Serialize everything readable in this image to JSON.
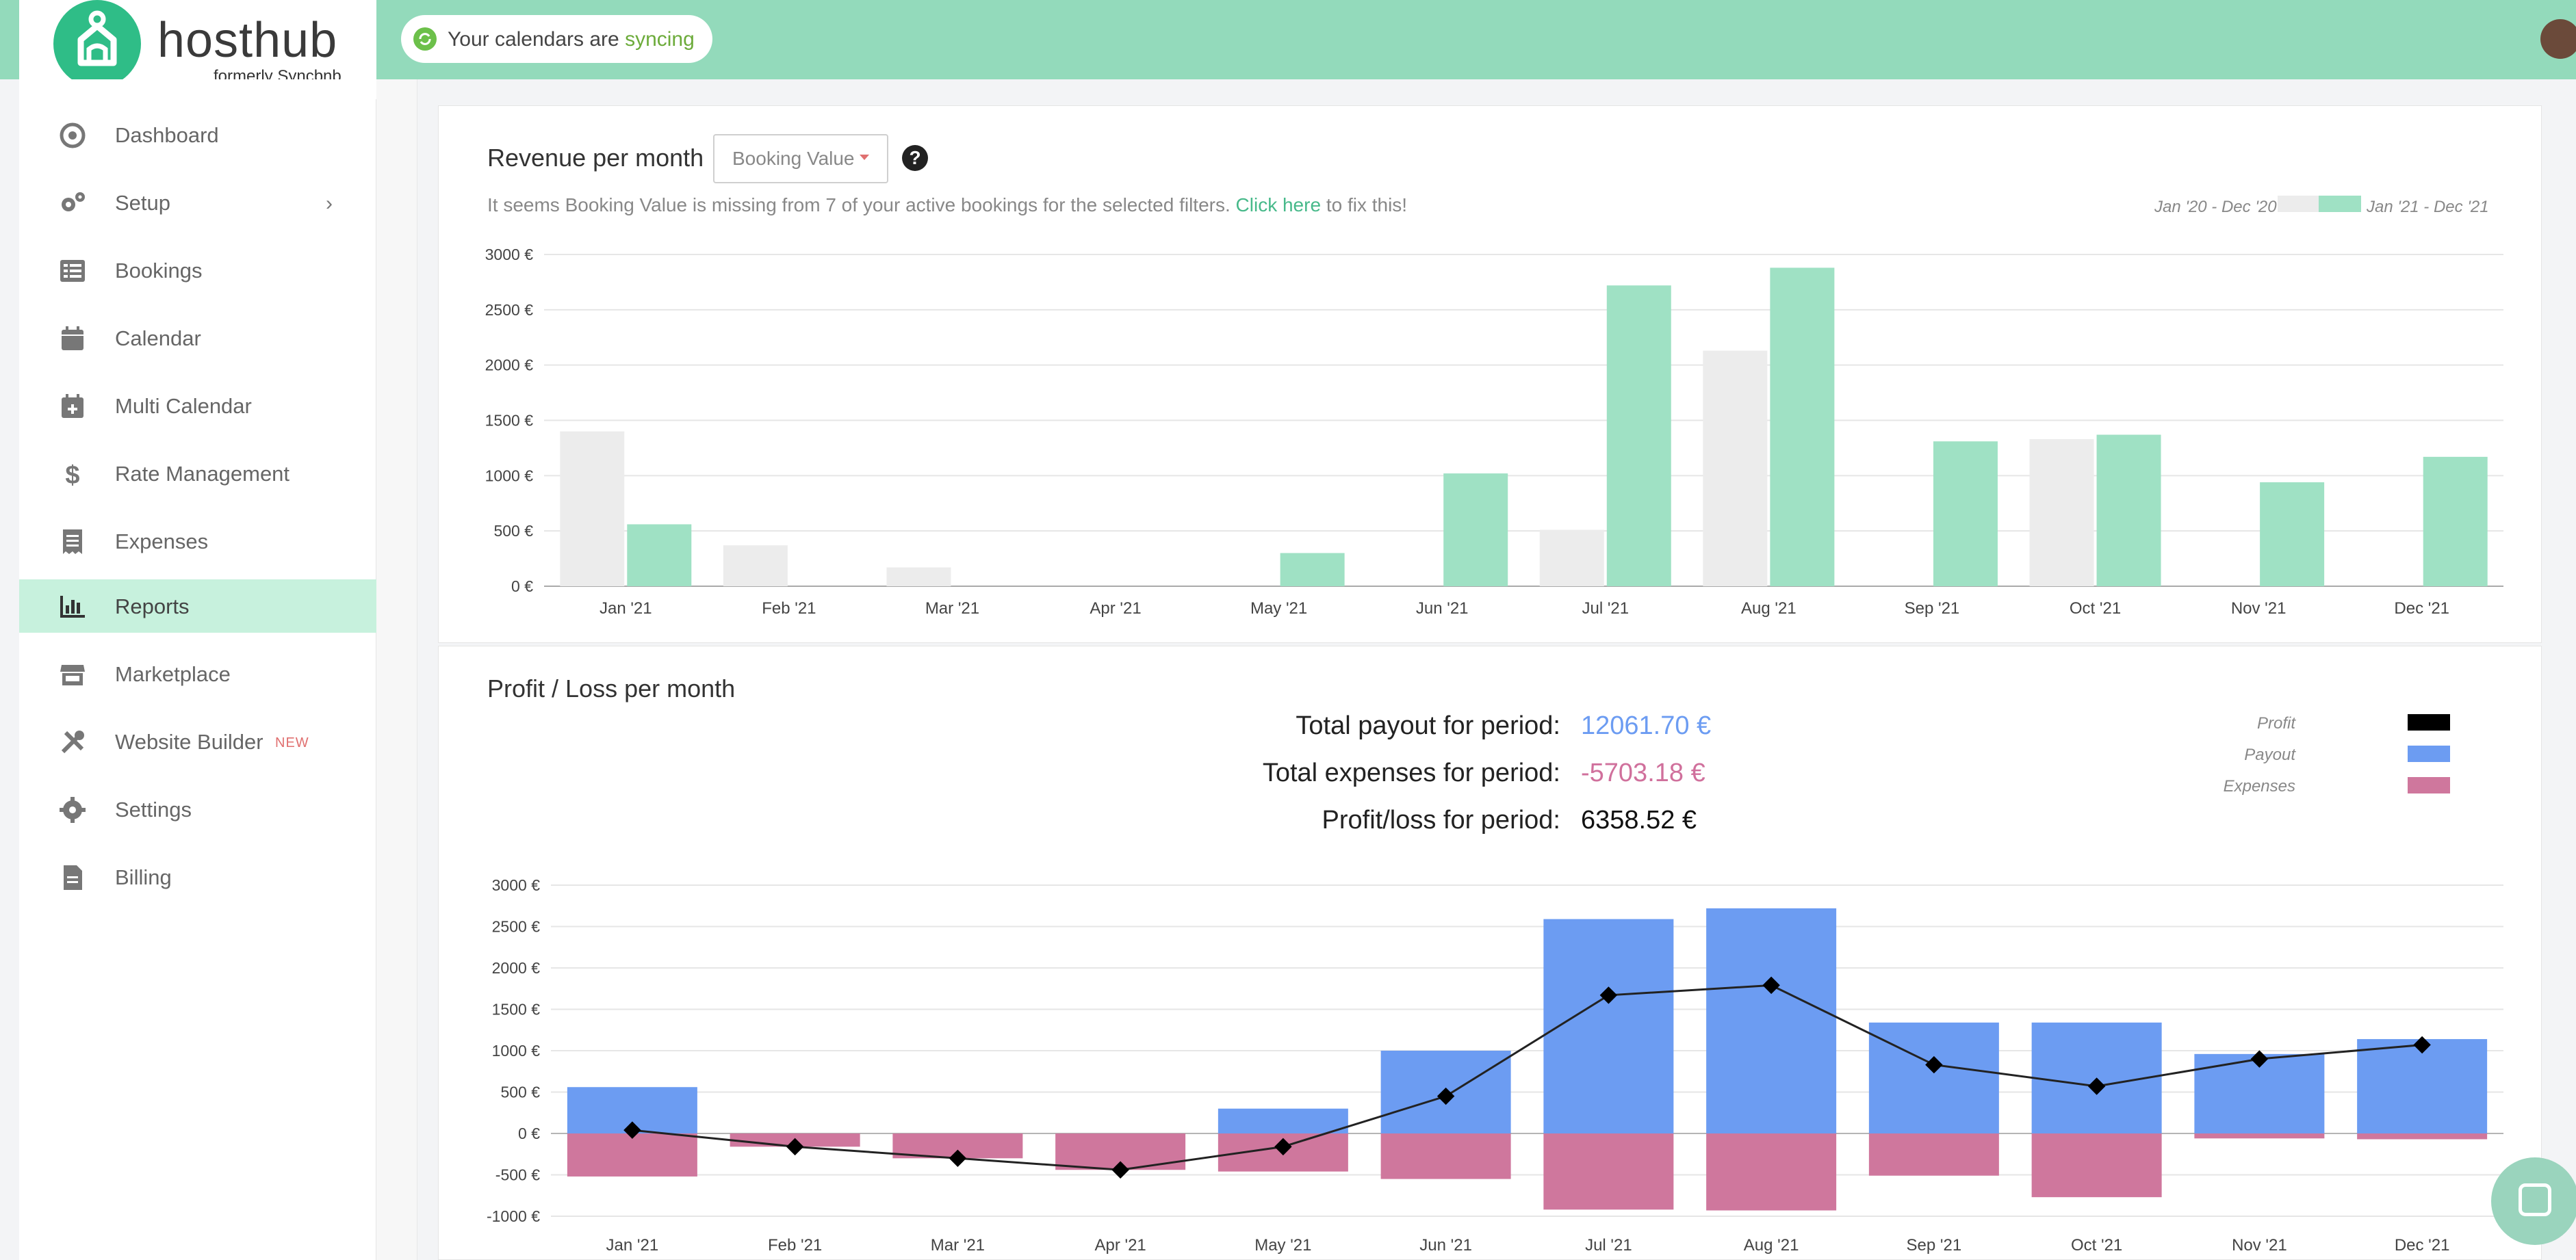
{
  "header": {
    "logo_text": "hosthub",
    "logo_subtext": "formerly Syncbnb",
    "sync_prefix": "Your calendars are",
    "sync_status": "syncing"
  },
  "sidebar": {
    "items": [
      {
        "label": "Dashboard",
        "icon": "dashboard-icon"
      },
      {
        "label": "Setup",
        "icon": "gears-icon"
      },
      {
        "label": "Bookings",
        "icon": "list-icon"
      },
      {
        "label": "Calendar",
        "icon": "calendar-icon"
      },
      {
        "label": "Multi Calendar",
        "icon": "calendar-plus-icon"
      },
      {
        "label": "Rate Management",
        "icon": "dollar-icon"
      },
      {
        "label": "Expenses",
        "icon": "receipt-icon"
      },
      {
        "label": "Reports",
        "icon": "bar-chart-icon",
        "active": true
      },
      {
        "label": "Marketplace",
        "icon": "store-icon"
      },
      {
        "label": "Website Builder",
        "icon": "tools-icon",
        "badge": "NEW"
      },
      {
        "label": "Settings",
        "icon": "gear-icon"
      },
      {
        "label": "Billing",
        "icon": "document-icon"
      }
    ]
  },
  "revenue": {
    "title": "Revenue per month",
    "metric_select": "Booking Value",
    "help": "?",
    "warning_prefix": "It seems Booking Value is missing from 7 of your active bookings for the selected filters.",
    "warning_link": "Click here",
    "warning_suffix": "to fix this!",
    "legend_prev": "Jan '20 - Dec '20",
    "legend_curr": "Jan '21 - Dec '21"
  },
  "profit": {
    "title": "Profit / Loss per month",
    "payout_label": "Total payout for period:",
    "payout_value": "12061.70 €",
    "expenses_label": "Total expenses for period:",
    "expenses_value": "-5703.18 €",
    "pl_label": "Profit/loss for period:",
    "pl_value": "6358.52 €",
    "legend_profit": "Profit",
    "legend_payout": "Payout",
    "legend_expenses": "Expenses"
  },
  "colors": {
    "brand": "#2fbd87",
    "header": "#93dabb",
    "prev_year": "#ececec",
    "curr_year": "#9fe1c4",
    "payout": "#6c9cf2",
    "expenses": "#cf779d",
    "profit": "#222222"
  },
  "chart_data": [
    {
      "type": "bar",
      "title": "Revenue per month",
      "categories": [
        "Jan '21",
        "Feb '21",
        "Mar '21",
        "Apr '21",
        "May '21",
        "Jun '21",
        "Jul '21",
        "Aug '21",
        "Sep '21",
        "Oct '21",
        "Nov '21",
        "Dec '21"
      ],
      "series": [
        {
          "name": "Jan '20 - Dec '20",
          "values": [
            1400,
            370,
            170,
            0,
            0,
            0,
            510,
            2130,
            0,
            1330,
            0,
            0
          ]
        },
        {
          "name": "Jan '21 - Dec '21",
          "values": [
            560,
            0,
            0,
            0,
            300,
            1020,
            2720,
            2880,
            1310,
            1370,
            940,
            1170
          ]
        }
      ],
      "ylim": [
        0,
        3000
      ],
      "yticks": [
        "0 €",
        "500 €",
        "1000 €",
        "1500 €",
        "2000 €",
        "2500 €",
        "3000 €"
      ],
      "grid": true,
      "legend": "top-right"
    },
    {
      "type": "bar",
      "title": "Profit / Loss per month",
      "categories": [
        "Jan '21",
        "Feb '21",
        "Mar '21",
        "Apr '21",
        "May '21",
        "Jun '21",
        "Jul '21",
        "Aug '21",
        "Sep '21",
        "Oct '21",
        "Nov '21",
        "Dec '21"
      ],
      "series": [
        {
          "name": "Payout",
          "values": [
            560,
            0,
            0,
            0,
            300,
            1000,
            2590,
            2720,
            1340,
            1340,
            960,
            1140
          ]
        },
        {
          "name": "Expenses",
          "values": [
            -520,
            -160,
            -300,
            -440,
            -460,
            -550,
            -920,
            -930,
            -510,
            -770,
            -60,
            -70
          ]
        },
        {
          "name": "Profit",
          "type": "line",
          "values": [
            40,
            -160,
            -300,
            -440,
            -160,
            450,
            1670,
            1790,
            830,
            570,
            900,
            1070
          ]
        }
      ],
      "ylim": [
        -1000,
        3000
      ],
      "yticks": [
        "-1000 €",
        "-500 €",
        "0 €",
        "500 €",
        "1000 €",
        "1500 €",
        "2000 €",
        "2500 €",
        "3000 €"
      ],
      "grid": true,
      "legend": "top-right"
    }
  ]
}
